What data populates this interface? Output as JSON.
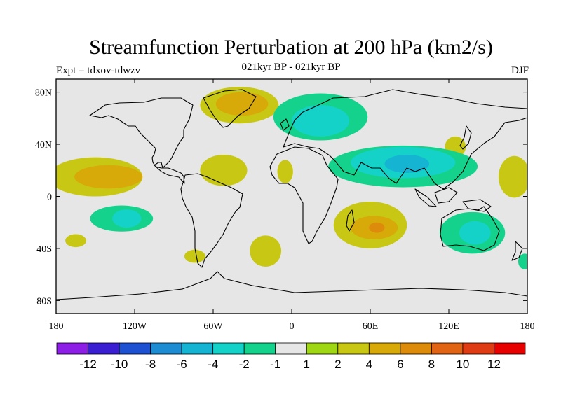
{
  "title": "Streamfunction Perturbation at 200 hPa (km2/s)",
  "subtitle_center": "021kyr BP - 021kyr BP",
  "subtitle_left": "Expt = tdxov-tdwzv",
  "subtitle_right": "DJF",
  "map": {
    "projection": "cylindrical equidistant",
    "lon_range": [
      -180,
      180
    ],
    "lat_range": [
      -90,
      90
    ],
    "background_color": "#e6e6e6",
    "coastline_color": "#000000"
  },
  "axes": {
    "y_ticks": [
      {
        "lat": 80,
        "label": "80N"
      },
      {
        "lat": 40,
        "label": "40N"
      },
      {
        "lat": 0,
        "label": "0"
      },
      {
        "lat": -40,
        "label": "40S"
      },
      {
        "lat": -80,
        "label": "80S"
      }
    ],
    "x_ticks": [
      {
        "lon": -180,
        "label": "180"
      },
      {
        "lon": -120,
        "label": "120W"
      },
      {
        "lon": -60,
        "label": "60W"
      },
      {
        "lon": 0,
        "label": "0"
      },
      {
        "lon": 60,
        "label": "60E"
      },
      {
        "lon": 120,
        "label": "120E"
      },
      {
        "lon": 180,
        "label": "180"
      }
    ]
  },
  "colorbar": {
    "colors": [
      "#8c1ee6",
      "#3a1ed2",
      "#1e50d2",
      "#1e8cd2",
      "#14b4d2",
      "#14d2c8",
      "#14d28c",
      "#e6e6e6",
      "#a0d714",
      "#c8c814",
      "#d7aa0a",
      "#dc8c0a",
      "#e06414",
      "#e03c14",
      "#e60000"
    ],
    "labels": [
      "-12",
      "-10",
      "-8",
      "-6",
      "-4",
      "-2",
      "-1",
      "1",
      "2",
      "4",
      "6",
      "8",
      "10",
      "12"
    ]
  },
  "chart_data": {
    "type": "heatmap",
    "title": "Streamfunction Perturbation at 200 hPa (km2/s)",
    "variable": "Streamfunction perturbation",
    "units": "km2/s",
    "contour_levels": [
      -12,
      -10,
      -8,
      -6,
      -4,
      -2,
      -1,
      1,
      2,
      4,
      6,
      8,
      10,
      12
    ],
    "features": [
      {
        "name": "north-atlantic-positive",
        "lon": -40,
        "lat": 70,
        "rx": 30,
        "ry": 14,
        "level": 2
      },
      {
        "name": "north-atlantic-positive-core",
        "lon": -38,
        "lat": 71,
        "rx": 20,
        "ry": 9,
        "level": 4
      },
      {
        "name": "east-pacific-positive",
        "lon": -150,
        "lat": 15,
        "rx": 36,
        "ry": 15,
        "level": 2
      },
      {
        "name": "east-pacific-positive-core",
        "lon": -140,
        "lat": 15,
        "rx": 26,
        "ry": 9,
        "level": 4
      },
      {
        "name": "caribbean-positive",
        "lon": -52,
        "lat": 20,
        "rx": 18,
        "ry": 12,
        "level": 2
      },
      {
        "name": "west-africa-positive",
        "lon": -5,
        "lat": 19,
        "rx": 6,
        "ry": 9,
        "level": 2
      },
      {
        "name": "south-indian-positive",
        "lon": 60,
        "lat": -22,
        "rx": 28,
        "ry": 18,
        "level": 2
      },
      {
        "name": "south-indian-positive-core",
        "lon": 63,
        "lat": -24,
        "rx": 18,
        "ry": 9,
        "level": 4
      },
      {
        "name": "south-indian-strong",
        "lon": 65,
        "lat": -24,
        "rx": 6,
        "ry": 4,
        "level": 6
      },
      {
        "name": "south-atlantic-positive",
        "lon": -20,
        "lat": -42,
        "rx": 12,
        "ry": 12,
        "level": 2
      },
      {
        "name": "south-pacific-positive",
        "lon": -165,
        "lat": -34,
        "rx": 8,
        "ry": 5,
        "level": 2
      },
      {
        "name": "south-america-positive",
        "lon": -74,
        "lat": -46,
        "rx": 8,
        "ry": 5,
        "level": 2
      },
      {
        "name": "east-asia-positive",
        "lon": 125,
        "lat": 38,
        "rx": 8,
        "ry": 8,
        "level": 2
      },
      {
        "name": "west-pacific-positive",
        "lon": 170,
        "lat": 15,
        "rx": 12,
        "ry": 16,
        "level": 2
      },
      {
        "name": "eurasia-negative",
        "lon": 22,
        "lat": 61,
        "rx": 36,
        "ry": 18,
        "level": -1
      },
      {
        "name": "eurasia-negative-core",
        "lon": 22,
        "lat": 58,
        "rx": 22,
        "ry": 12,
        "level": -2
      },
      {
        "name": "asia-negative",
        "lon": 85,
        "lat": 23,
        "rx": 57,
        "ry": 16,
        "level": -1
      },
      {
        "name": "asia-negative-core",
        "lon": 85,
        "lat": 26,
        "rx": 40,
        "ry": 12,
        "level": -2
      },
      {
        "name": "asia-negative-strong",
        "lon": 88,
        "lat": 25,
        "rx": 17,
        "ry": 7,
        "level": -4
      },
      {
        "name": "australia-negative",
        "lon": 138,
        "lat": -28,
        "rx": 25,
        "ry": 16,
        "level": -1
      },
      {
        "name": "australia-negative-core",
        "lon": 140,
        "lat": -28,
        "rx": 12,
        "ry": 9,
        "level": -2
      },
      {
        "name": "south-pacific-negative",
        "lon": -130,
        "lat": -17,
        "rx": 24,
        "ry": 10,
        "level": -1
      },
      {
        "name": "south-pacific-negative-core",
        "lon": -126,
        "lat": -17,
        "rx": 11,
        "ry": 7,
        "level": -2
      },
      {
        "name": "south-pacific-high-latitude-negative",
        "lon": 178,
        "lat": -50,
        "rx": 5,
        "ry": 6,
        "level": -1
      }
    ]
  }
}
